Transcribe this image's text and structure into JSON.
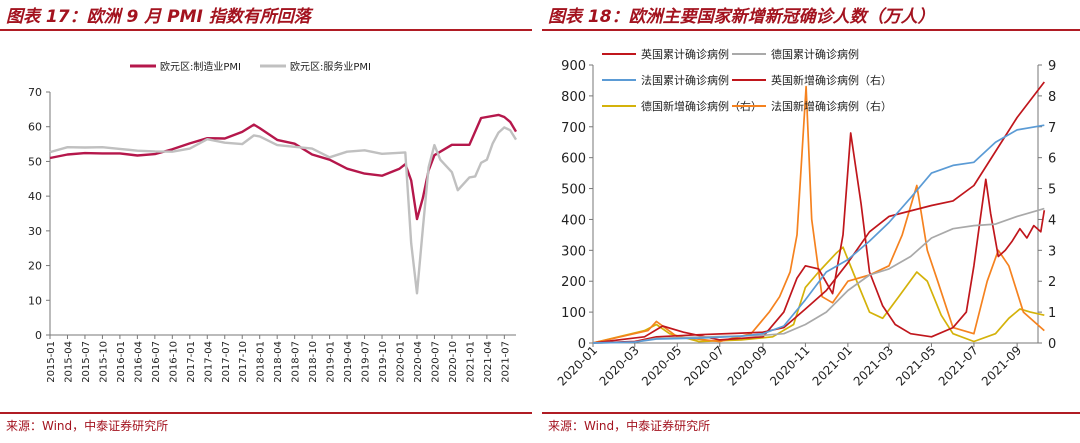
{
  "left": {
    "title": "图表 17：欧洲 9 月 PMI 指数有所回落",
    "source": "来源：Wind，中泰证券研究所"
  },
  "right": {
    "title": "图表 18：欧洲主要国家新增新冠确诊人数（万人）",
    "source": "来源：Wind，中泰证券研究所"
  },
  "chart_data": [
    {
      "type": "line",
      "title": "图表 17：欧洲 9 月 PMI 指数有所回落",
      "ylim": [
        0,
        70
      ],
      "yticks": [
        0,
        10,
        20,
        30,
        40,
        50,
        60,
        70
      ],
      "x_tick_labels": [
        "2015-01",
        "2015-04",
        "2015-07",
        "2015-10",
        "2016-01",
        "2016-04",
        "2016-07",
        "2016-10",
        "2017-01",
        "2017-04",
        "2017-07",
        "2017-10",
        "2018-01",
        "2018-04",
        "2018-07",
        "2018-10",
        "2019-01",
        "2019-04",
        "2019-07",
        "2019-10",
        "2020-01",
        "2020-04",
        "2020-07",
        "2020-10",
        "2021-01",
        "2021-04",
        "2021-07"
      ],
      "legend_position": "top-center",
      "grid": false,
      "colors": {
        "manufacturing": "#b5174b",
        "services": "#c0c0c0"
      },
      "series": [
        {
          "name": "欧元区:制造业PMI",
          "color": "#b5174b",
          "x": [
            "2015-01",
            "2015-04",
            "2015-07",
            "2015-10",
            "2016-01",
            "2016-04",
            "2016-07",
            "2016-10",
            "2017-01",
            "2017-04",
            "2017-07",
            "2017-10",
            "2017-12",
            "2018-01",
            "2018-04",
            "2018-07",
            "2018-10",
            "2019-01",
            "2019-04",
            "2019-07",
            "2019-10",
            "2020-01",
            "2020-02",
            "2020-03",
            "2020-04",
            "2020-05",
            "2020-06",
            "2020-07",
            "2020-10",
            "2021-01",
            "2021-03",
            "2021-06",
            "2021-07",
            "2021-08",
            "2021-09"
          ],
          "values": [
            51,
            52,
            52.4,
            52.3,
            52.3,
            51.7,
            52.1,
            53.5,
            55.2,
            56.7,
            56.6,
            58.5,
            60.6,
            59.6,
            56.2,
            55.1,
            52,
            50.5,
            47.9,
            46.5,
            45.9,
            47.9,
            49.2,
            44.5,
            33.4,
            39.4,
            47.4,
            51.8,
            54.8,
            54.8,
            62.5,
            63.4,
            62.8,
            61.4,
            58.6
          ]
        },
        {
          "name": "欧元区:服务业PMI",
          "color": "#c0c0c0",
          "x": [
            "2015-01",
            "2015-04",
            "2015-07",
            "2015-10",
            "2016-01",
            "2016-04",
            "2016-07",
            "2016-10",
            "2017-01",
            "2017-04",
            "2017-07",
            "2017-10",
            "2017-12",
            "2018-01",
            "2018-04",
            "2018-07",
            "2018-10",
            "2019-01",
            "2019-04",
            "2019-07",
            "2019-10",
            "2020-01",
            "2020-02",
            "2020-03",
            "2020-04",
            "2020-05",
            "2020-06",
            "2020-07",
            "2020-08",
            "2020-10",
            "2020-11",
            "2021-01",
            "2021-02",
            "2021-03",
            "2021-04",
            "2021-05",
            "2021-06",
            "2021-07",
            "2021-08",
            "2021-09"
          ],
          "values": [
            52.7,
            54.1,
            54,
            54.1,
            53.6,
            53.1,
            52.9,
            52.8,
            53.7,
            56.4,
            55.4,
            55,
            57.5,
            57.2,
            54.7,
            54.2,
            53.7,
            51.2,
            52.8,
            53.2,
            52.2,
            52.5,
            52.6,
            26.4,
            12,
            30.5,
            48.3,
            54.7,
            50.5,
            46.9,
            41.7,
            45.4,
            45.7,
            49.6,
            50.5,
            55.2,
            58.3,
            59.8,
            59,
            56.3
          ]
        }
      ]
    },
    {
      "type": "line",
      "title": "图表 18：欧洲主要国家新增新冠确诊人数（万人）",
      "xlim": [
        "2020-01",
        "2021-10"
      ],
      "x_tick_labels": [
        "2020-01",
        "2020-03",
        "2020-05",
        "2020-07",
        "2020-09",
        "2020-11",
        "2021-01",
        "2021-03",
        "2021-05",
        "2021-07",
        "2021-09"
      ],
      "ylim_left": [
        0,
        900
      ],
      "yticks_left": [
        0,
        100,
        200,
        300,
        400,
        500,
        600,
        700,
        800,
        900
      ],
      "ylim_right": [
        0,
        9
      ],
      "yticks_right": [
        0,
        1,
        2,
        3,
        4,
        5,
        6,
        7,
        8,
        9
      ],
      "legend_position": "top-left",
      "grid": false,
      "series": [
        {
          "name": "英国累计确诊病例",
          "axis": "left",
          "color": "#c0161c",
          "x": [
            "2020-01-01",
            "2020-03-01",
            "2020-04-01",
            "2020-06-01",
            "2020-08-01",
            "2020-09-01",
            "2020-10-01",
            "2020-11-01",
            "2020-12-01",
            "2021-01-01",
            "2021-02-01",
            "2021-03-01",
            "2021-05-01",
            "2021-06-01",
            "2021-07-01",
            "2021-08-01",
            "2021-09-01",
            "2021-10-10"
          ],
          "values": [
            0,
            5,
            20,
            27,
            32,
            35,
            50,
            110,
            170,
            260,
            360,
            410,
            445,
            460,
            510,
            620,
            730,
            845
          ]
        },
        {
          "name": "德国累计确诊病例",
          "axis": "left",
          "color": "#a9a9a9",
          "x": [
            "2020-01-01",
            "2020-03-01",
            "2020-04-01",
            "2020-06-01",
            "2020-09-01",
            "2020-10-01",
            "2020-11-01",
            "2020-12-01",
            "2021-01-01",
            "2021-02-01",
            "2021-03-01",
            "2021-04-01",
            "2021-05-01",
            "2021-06-01",
            "2021-07-01",
            "2021-08-01",
            "2021-09-01",
            "2021-10-10"
          ],
          "values": [
            0,
            3,
            15,
            19,
            25,
            30,
            60,
            100,
            170,
            220,
            240,
            280,
            340,
            370,
            380,
            385,
            410,
            435
          ]
        },
        {
          "name": "法国累计确诊病例",
          "axis": "left",
          "color": "#5b9bd5",
          "x": [
            "2020-01-01",
            "2020-03-01",
            "2020-04-01",
            "2020-06-01",
            "2020-08-01",
            "2020-09-01",
            "2020-10-01",
            "2020-11-01",
            "2020-12-01",
            "2021-01-01",
            "2021-02-01",
            "2021-03-01",
            "2021-04-01",
            "2021-05-01",
            "2021-06-01",
            "2021-07-01",
            "2021-08-01",
            "2021-09-01",
            "2021-10-10"
          ],
          "values": [
            0,
            3,
            13,
            16,
            22,
            30,
            55,
            140,
            230,
            270,
            330,
            390,
            470,
            550,
            575,
            585,
            650,
            690,
            705
          ]
        },
        {
          "name": "英国新增确诊病例（右）",
          "axis": "right",
          "color": "#c0161c",
          "x": [
            "2020-01-01",
            "2020-03-15",
            "2020-04-10",
            "2020-05-10",
            "2020-07-01",
            "2020-09-01",
            "2020-10-01",
            "2020-10-20",
            "2020-11-01",
            "2020-11-20",
            "2020-12-10",
            "2020-12-25",
            "2021-01-05",
            "2021-01-20",
            "2021-02-01",
            "2021-02-20",
            "2021-03-10",
            "2021-04-01",
            "2021-05-01",
            "2021-06-01",
            "2021-06-20",
            "2021-07-01",
            "2021-07-10",
            "2021-07-18",
            "2021-07-25",
            "2021-08-05",
            "2021-08-15",
            "2021-08-25",
            "2021-09-05",
            "2021-09-15",
            "2021-09-25",
            "2021-10-05",
            "2021-10-10"
          ],
          "values": [
            0,
            0.2,
            0.55,
            0.35,
            0.1,
            0.2,
            1.0,
            2.1,
            2.5,
            2.4,
            1.6,
            3.5,
            6.8,
            4.5,
            2.3,
            1.2,
            0.6,
            0.3,
            0.2,
            0.5,
            1.0,
            2.5,
            4.0,
            5.3,
            4.2,
            2.8,
            3.0,
            3.3,
            3.7,
            3.4,
            3.8,
            3.6,
            4.3
          ]
        },
        {
          "name": "德国新增确诊病例（右）",
          "axis": "right",
          "color": "#d4b20a",
          "x": [
            "2020-01-01",
            "2020-03-15",
            "2020-04-01",
            "2020-04-20",
            "2020-06-01",
            "2020-08-01",
            "2020-09-15",
            "2020-10-15",
            "2020-11-01",
            "2020-11-20",
            "2020-12-15",
            "2020-12-25",
            "2021-01-10",
            "2021-02-01",
            "2021-02-20",
            "2021-03-15",
            "2021-04-10",
            "2021-04-25",
            "2021-05-15",
            "2021-06-01",
            "2021-07-01",
            "2021-08-01",
            "2021-08-20",
            "2021-09-05",
            "2021-09-20",
            "2021-10-10"
          ],
          "values": [
            0,
            0.4,
            0.6,
            0.3,
            0.05,
            0.1,
            0.2,
            0.6,
            1.8,
            2.3,
            2.9,
            3.1,
            2.2,
            1.0,
            0.8,
            1.5,
            2.3,
            2.0,
            0.9,
            0.3,
            0.05,
            0.3,
            0.8,
            1.1,
            1.0,
            0.9
          ]
        },
        {
          "name": "法国新增确诊病例（右）",
          "axis": "right",
          "color": "#f5821f",
          "x": [
            "2020-01-01",
            "2020-03-20",
            "2020-04-01",
            "2020-05-01",
            "2020-07-01",
            "2020-08-15",
            "2020-09-10",
            "2020-09-25",
            "2020-10-10",
            "2020-10-20",
            "2020-11-02",
            "2020-11-10",
            "2020-11-25",
            "2020-12-10",
            "2021-01-01",
            "2021-02-01",
            "2021-03-01",
            "2021-03-20",
            "2021-04-10",
            "2021-04-25",
            "2021-05-10",
            "2021-06-01",
            "2021-07-01",
            "2021-07-20",
            "2021-08-05",
            "2021-08-20",
            "2021-09-10",
            "2021-10-10"
          ],
          "values": [
            0,
            0.4,
            0.7,
            0.2,
            0.05,
            0.3,
            1.0,
            1.5,
            2.3,
            3.5,
            8.3,
            4.0,
            1.5,
            1.3,
            2.0,
            2.2,
            2.5,
            3.5,
            5.1,
            3.0,
            2.0,
            0.5,
            0.3,
            2.0,
            3.0,
            2.5,
            1.0,
            0.4
          ]
        }
      ]
    }
  ]
}
